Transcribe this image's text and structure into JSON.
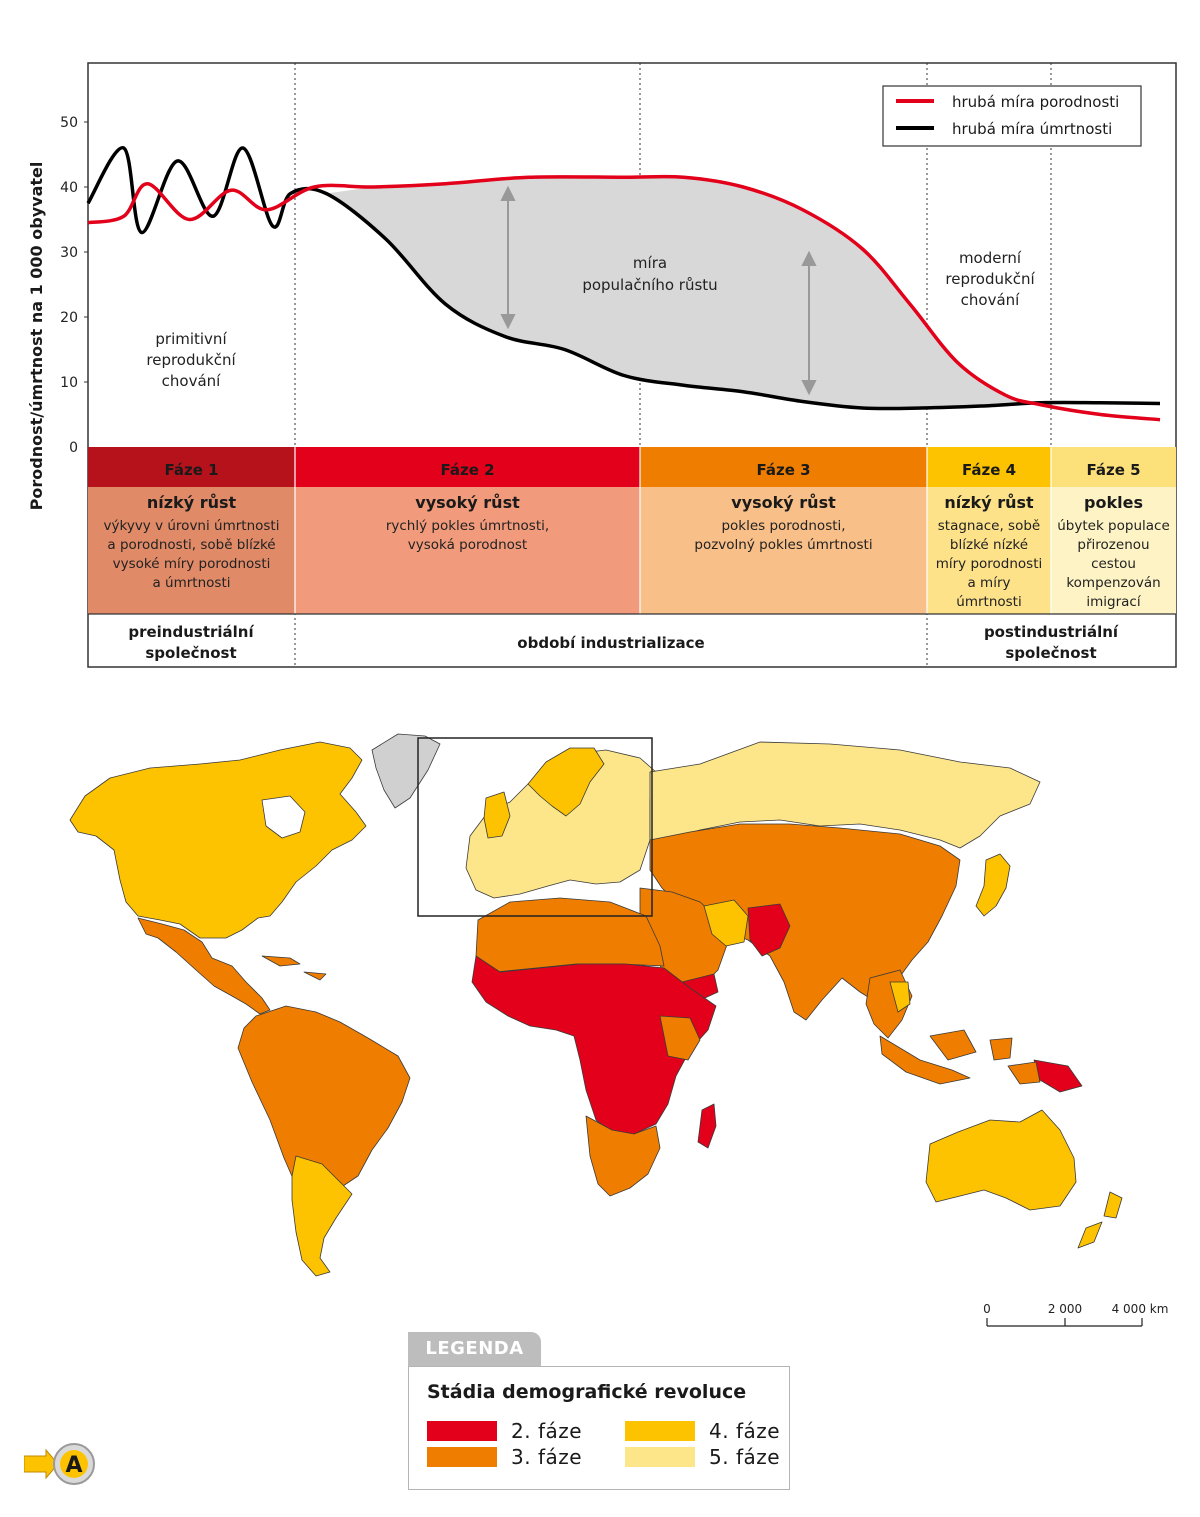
{
  "chart_data": {
    "type": "line",
    "ylabel": "Porodnost/úmrtnost na 1 000 obyvatel",
    "yticks": [
      "0",
      "10",
      "20",
      "30",
      "40",
      "50"
    ],
    "ylim": [
      0,
      60
    ],
    "legend_position": "top-right",
    "series": [
      {
        "name": "hrubá míra porodnosti",
        "color": "#e2001a",
        "points": [
          [
            0,
            34.5
          ],
          [
            0.3,
            35.5
          ],
          [
            0.5,
            40.5
          ],
          [
            0.85,
            35
          ],
          [
            1.2,
            39.5
          ],
          [
            1.5,
            36.5
          ],
          [
            1.9,
            40
          ],
          [
            2.4,
            40
          ],
          [
            3,
            40.5
          ],
          [
            3.7,
            41.5
          ],
          [
            4.5,
            41.5
          ],
          [
            5,
            41.5
          ],
          [
            5.5,
            40
          ],
          [
            6,
            36.5
          ],
          [
            6.5,
            30.5
          ],
          [
            6.9,
            22
          ],
          [
            7.3,
            13
          ],
          [
            7.7,
            8
          ],
          [
            8,
            6.5
          ],
          [
            8.5,
            5
          ],
          [
            9,
            4.2
          ]
        ]
      },
      {
        "name": "hrubá míra úmrtnosti",
        "color": "#000000",
        "points": [
          [
            0,
            37.5
          ],
          [
            0.3,
            46
          ],
          [
            0.45,
            33
          ],
          [
            0.75,
            44
          ],
          [
            1.05,
            35.5
          ],
          [
            1.3,
            46
          ],
          [
            1.55,
            34
          ],
          [
            1.7,
            39
          ],
          [
            2,
            39
          ],
          [
            2.5,
            32
          ],
          [
            3,
            22
          ],
          [
            3.5,
            17
          ],
          [
            4,
            15
          ],
          [
            4.5,
            11
          ],
          [
            5,
            9.5
          ],
          [
            5.5,
            8.5
          ],
          [
            6,
            7
          ],
          [
            6.5,
            6
          ],
          [
            7,
            6
          ],
          [
            7.5,
            6.3
          ],
          [
            8,
            6.8
          ],
          [
            8.5,
            6.8
          ],
          [
            9,
            6.7
          ]
        ]
      }
    ],
    "annotations": [
      "míra populačního růstu",
      "primitivní reprodukční chování",
      "moderní reprodukční chování"
    ],
    "phases": [
      {
        "name": "Fáze 1",
        "head": "nízký růst",
        "desc": [
          "výkyvy v úrovni úmrtnosti",
          "a porodnosti, sobě blízké",
          "vysoké míry porodnosti",
          "a úmrtnosti"
        ],
        "color": "#b5121b",
        "body_color": "#e08a68"
      },
      {
        "name": "Fáze 2",
        "head": "vysoký růst",
        "desc": [
          "rychlý pokles úmrtnosti,",
          "vysoká porodnost"
        ],
        "color": "#e2001a",
        "body_color": "#f29b7c"
      },
      {
        "name": "Fáze 3",
        "head": "vysoký růst",
        "desc": [
          "pokles porodnosti,",
          "pozvolný pokles úmrtnosti"
        ],
        "color": "#ee7d00",
        "body_color": "#f8bf88"
      },
      {
        "name": "Fáze 4",
        "head": "nízký růst",
        "desc": [
          "stagnace, sobě",
          "blízké nízké",
          "míry porodnosti",
          "a míry",
          "úmrtnosti"
        ],
        "color": "#fdc300",
        "body_color": "#fde28a"
      },
      {
        "name": "Fáze 5",
        "head": "pokles",
        "desc": [
          "úbytek populace",
          "přirozenou",
          "cestou",
          "kompenzován",
          "imigrací"
        ],
        "color": "#fce17a",
        "body_color": "#fdf3c4"
      }
    ],
    "societies": [
      {
        "lines": [
          "preindustriální",
          "společnost"
        ]
      },
      {
        "lines": [
          "období industrializace"
        ]
      },
      {
        "lines": [
          "postindustriální",
          "společnost"
        ]
      }
    ]
  },
  "map": {
    "colors": {
      "phase2": "#e2001a",
      "phase3": "#ee7d00",
      "phase4": "#fdc300",
      "phase5": "#fde68a",
      "nodata": "#d0d0d0",
      "border": "#3a3a3a"
    }
  },
  "scale_bar": {
    "labels": [
      "0",
      "2 000",
      "4 000 km"
    ]
  },
  "legend": {
    "tab": "LEGENDA",
    "title": "Stádia demografické revoluce",
    "items": [
      {
        "label": "2. fáze",
        "color": "#e2001a"
      },
      {
        "label": "4. fáze",
        "color": "#fdc300"
      },
      {
        "label": "3. fáze",
        "color": "#ee7d00"
      },
      {
        "label": "5. fáze",
        "color": "#fde68a"
      }
    ]
  },
  "nav_icon": {
    "letter": "A",
    "name": "arrow-a-icon"
  }
}
